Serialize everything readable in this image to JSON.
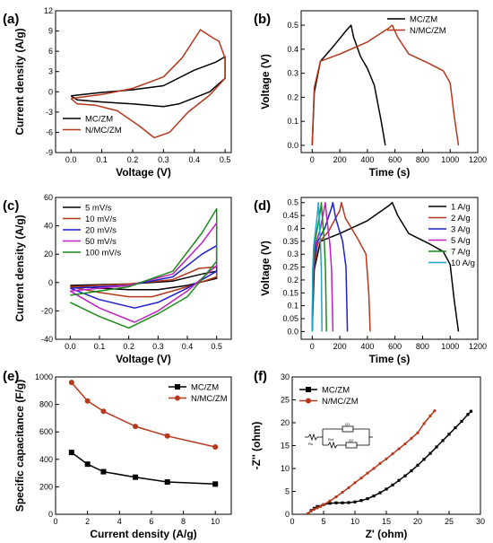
{
  "chart_data": [
    {
      "panel": "(a)",
      "type": "line",
      "xlabel": "Voltage (V)",
      "ylabel": "Current density (A/g)",
      "xlim": [
        -0.05,
        0.52
      ],
      "ylim": [
        -9,
        12
      ],
      "xticks": [
        0.0,
        0.1,
        0.2,
        0.3,
        0.4,
        0.5
      ],
      "xtick_labels": [
        "0.0",
        "0.1",
        "0.2",
        "0.3",
        "0.4",
        "0.5"
      ],
      "yticks": [
        -9,
        -6,
        -3,
        0,
        3,
        6,
        9,
        12
      ],
      "ytick_labels": [
        "-9",
        "-6",
        "-3",
        "0",
        "3",
        "6",
        "9",
        "12"
      ],
      "legend": "bottom-left",
      "series": [
        {
          "name": "MC/ZM",
          "color": "#000000",
          "x": [
            0.0,
            0.1,
            0.2,
            0.3,
            0.4,
            0.47,
            0.5,
            0.5,
            0.45,
            0.35,
            0.3,
            0.2,
            0.1,
            0.02,
            0.0
          ],
          "y": [
            -0.6,
            -0.1,
            0.3,
            0.9,
            3.2,
            4.4,
            5.2,
            2.0,
            0.0,
            -1.8,
            -2.2,
            -1.8,
            -1.5,
            -1.2,
            -0.6
          ]
        },
        {
          "name": "N/MC/ZM",
          "color": "#b5371c",
          "x": [
            0.0,
            0.1,
            0.2,
            0.3,
            0.36,
            0.42,
            0.46,
            0.48,
            0.5,
            0.5,
            0.45,
            0.38,
            0.32,
            0.27,
            0.22,
            0.15,
            0.08,
            0.02,
            0.0
          ],
          "y": [
            -1.0,
            -0.4,
            0.5,
            2.2,
            5.0,
            9.2,
            8.0,
            7.5,
            5.0,
            2.0,
            -0.5,
            -3.0,
            -6.0,
            -6.8,
            -5.0,
            -2.8,
            -2.0,
            -1.8,
            -1.0
          ]
        }
      ]
    },
    {
      "panel": "(b)",
      "type": "line",
      "xlabel": "Time (s)",
      "ylabel": "Voltage (V)",
      "xlim": [
        -80,
        1200
      ],
      "ylim": [
        -0.03,
        0.56
      ],
      "xticks": [
        0,
        200,
        400,
        600,
        800,
        1000,
        1200
      ],
      "xtick_labels": [
        "0",
        "200",
        "400",
        "600",
        "800",
        "1000",
        "1200"
      ],
      "yticks": [
        0.0,
        0.1,
        0.2,
        0.3,
        0.4,
        0.5
      ],
      "ytick_labels": [
        "0.0",
        "0.1",
        "0.2",
        "0.3",
        "0.4",
        "0.5"
      ],
      "legend": "top-right",
      "series": [
        {
          "name": "MC/ZM",
          "color": "#000000",
          "x": [
            0,
            15,
            60,
            150,
            250,
            282,
            300,
            350,
            400,
            450,
            500,
            530
          ],
          "y": [
            0.0,
            0.22,
            0.35,
            0.41,
            0.48,
            0.5,
            0.45,
            0.37,
            0.32,
            0.25,
            0.1,
            0.0
          ]
        },
        {
          "name": "N/MC/ZM",
          "color": "#b5371c",
          "x": [
            0,
            15,
            60,
            200,
            400,
            560,
            580,
            620,
            700,
            850,
            950,
            1000,
            1030,
            1060
          ],
          "y": [
            0.0,
            0.24,
            0.35,
            0.38,
            0.43,
            0.49,
            0.5,
            0.45,
            0.38,
            0.34,
            0.31,
            0.26,
            0.12,
            0.0
          ]
        }
      ]
    },
    {
      "panel": "(c)",
      "type": "line",
      "xlabel": "Voltage (V)",
      "ylabel": "Current density (A/g)",
      "xlim": [
        -0.05,
        0.55
      ],
      "ylim": [
        -40,
        60
      ],
      "xticks": [
        0.0,
        0.1,
        0.2,
        0.3,
        0.4,
        0.5
      ],
      "xtick_labels": [
        "0.0",
        "0.1",
        "0.2",
        "0.3",
        "0.4",
        "0.5"
      ],
      "yticks": [
        -40,
        -20,
        0,
        20,
        40,
        60
      ],
      "ytick_labels": [
        "-40",
        "-20",
        "0",
        "20",
        "40",
        "60"
      ],
      "legend": "top-left",
      "series": [
        {
          "name": "5 mV/s",
          "color": "#000000",
          "x": [
            0.0,
            0.2,
            0.35,
            0.45,
            0.5,
            0.5,
            0.4,
            0.3,
            0.2,
            0.1,
            0.0
          ],
          "y": [
            -2,
            -1,
            1,
            6,
            8,
            3,
            -2,
            -5,
            -5,
            -4,
            -2
          ]
        },
        {
          "name": "10 mV/s",
          "color": "#b5371c",
          "x": [
            0.0,
            0.2,
            0.35,
            0.44,
            0.5,
            0.5,
            0.4,
            0.28,
            0.2,
            0.1,
            0.0
          ],
          "y": [
            -3,
            -1,
            2,
            10,
            11,
            4,
            -3,
            -10,
            -10,
            -7,
            -3
          ]
        },
        {
          "name": "20 mV/s",
          "color": "#1f1fcc",
          "x": [
            0.0,
            0.2,
            0.35,
            0.45,
            0.5,
            0.5,
            0.4,
            0.3,
            0.22,
            0.1,
            0.0
          ],
          "y": [
            -4,
            -2,
            4,
            20,
            26,
            8,
            -4,
            -14,
            -18,
            -12,
            -4
          ]
        },
        {
          "name": "50 mV/s",
          "color": "#bf20bf",
          "x": [
            0.0,
            0.2,
            0.35,
            0.45,
            0.5,
            0.5,
            0.4,
            0.3,
            0.22,
            0.1,
            0.0
          ],
          "y": [
            -6,
            -2,
            6,
            28,
            42,
            12,
            -6,
            -20,
            -28,
            -18,
            -6
          ]
        },
        {
          "name": "100 mV/s",
          "color": "#1d8a1d",
          "x": [
            0.0,
            0.2,
            0.35,
            0.45,
            0.5,
            0.5,
            0.4,
            0.3,
            0.2,
            0.1,
            0.0
          ],
          "y": [
            -9,
            -3,
            8,
            35,
            52,
            15,
            -10,
            -22,
            -32,
            -24,
            -14
          ]
        }
      ]
    },
    {
      "panel": "(d)",
      "type": "line",
      "xlabel": "Time (s)",
      "ylabel": "Voltage (V)",
      "xlim": [
        -80,
        1200
      ],
      "ylim": [
        -0.03,
        0.52
      ],
      "xticks": [
        0,
        200,
        400,
        600,
        800,
        1000,
        1200
      ],
      "xtick_labels": [
        "0",
        "200",
        "400",
        "600",
        "800",
        "1000",
        "1200"
      ],
      "yticks": [
        0.0,
        0.05,
        0.1,
        0.15,
        0.2,
        0.25,
        0.3,
        0.35,
        0.4,
        0.45,
        0.5
      ],
      "ytick_labels": [
        "0.0",
        "0.05",
        "0.1",
        "0.15",
        "0.2",
        "0.25",
        "0.3",
        "0.35",
        "0.4",
        "0.45",
        "0.5"
      ],
      "legend": "top-right",
      "series": [
        {
          "name": "1 A/g",
          "color": "#000000",
          "x": [
            0,
            15,
            60,
            200,
            400,
            560,
            580,
            620,
            700,
            850,
            950,
            1000,
            1030,
            1060
          ],
          "y": [
            0.0,
            0.24,
            0.35,
            0.38,
            0.43,
            0.49,
            0.5,
            0.45,
            0.38,
            0.34,
            0.31,
            0.26,
            0.12,
            0.0
          ]
        },
        {
          "name": "2 A/g",
          "color": "#b5371c",
          "x": [
            0,
            10,
            40,
            120,
            200,
            212,
            240,
            330,
            390,
            410,
            420
          ],
          "y": [
            0.0,
            0.24,
            0.34,
            0.39,
            0.47,
            0.5,
            0.44,
            0.36,
            0.3,
            0.15,
            0.0
          ]
        },
        {
          "name": "3 A/g",
          "color": "#1f1fcc",
          "x": [
            0,
            8,
            30,
            90,
            140,
            150,
            170,
            220,
            245,
            255
          ],
          "y": [
            0.0,
            0.24,
            0.34,
            0.4,
            0.48,
            0.5,
            0.44,
            0.35,
            0.25,
            0.0
          ]
        },
        {
          "name": "5 A/g",
          "color": "#bf20bf",
          "x": [
            0,
            6,
            20,
            60,
            88,
            95,
            108,
            128,
            140,
            150
          ],
          "y": [
            0.0,
            0.24,
            0.33,
            0.4,
            0.48,
            0.5,
            0.43,
            0.34,
            0.24,
            0.0
          ]
        },
        {
          "name": "7 A/g",
          "color": "#1d8a1d",
          "x": [
            0,
            5,
            15,
            40,
            62,
            66,
            75,
            88,
            96,
            103
          ],
          "y": [
            0.0,
            0.24,
            0.33,
            0.41,
            0.48,
            0.5,
            0.43,
            0.34,
            0.24,
            0.0
          ]
        },
        {
          "name": "10 A/g",
          "color": "#1aa8c8",
          "x": [
            0,
            4,
            10,
            28,
            42,
            45,
            52,
            60,
            66,
            71
          ],
          "y": [
            0.0,
            0.24,
            0.33,
            0.41,
            0.48,
            0.5,
            0.43,
            0.34,
            0.24,
            0.0
          ]
        }
      ]
    },
    {
      "panel": "(e)",
      "type": "line",
      "xlabel": "Current density (A/g)",
      "ylabel": "Specific capacitance (F/g)",
      "xlim": [
        0,
        11
      ],
      "ylim": [
        0,
        1000
      ],
      "xticks": [
        0,
        2,
        4,
        6,
        8,
        10
      ],
      "xtick_labels": [
        "0",
        "2",
        "4",
        "6",
        "8",
        "10"
      ],
      "yticks": [
        0,
        200,
        400,
        600,
        800,
        1000
      ],
      "ytick_labels": [
        "0",
        "200",
        "400",
        "600",
        "800",
        "1000"
      ],
      "legend": "top-right",
      "series": [
        {
          "name": "MC/ZM",
          "color": "#000000",
          "marker": "square",
          "x": [
            1,
            2,
            3,
            5,
            7,
            10
          ],
          "y": [
            450,
            365,
            310,
            270,
            235,
            220
          ]
        },
        {
          "name": "N/MC/ZM",
          "color": "#b5371c",
          "marker": "circle",
          "x": [
            1,
            2,
            3,
            5,
            7,
            10
          ],
          "y": [
            960,
            825,
            750,
            640,
            570,
            490
          ]
        }
      ]
    },
    {
      "panel": "(f)",
      "type": "scatter",
      "xlabel": "Z' (ohm)",
      "ylabel": "-Z'' (ohm)",
      "xlim": [
        0,
        30
      ],
      "ylim": [
        0,
        30
      ],
      "xticks": [
        0,
        5,
        10,
        15,
        20,
        25,
        30
      ],
      "xtick_labels": [
        "0",
        "5",
        "10",
        "15",
        "20",
        "25",
        "30"
      ],
      "yticks": [
        0,
        5,
        10,
        15,
        20,
        25,
        30
      ],
      "ytick_labels": [
        "0",
        "5",
        "10",
        "15",
        "20",
        "25",
        "30"
      ],
      "legend": "top-left",
      "inset": "equivalent circuit",
      "inset_labels": [
        "Rs",
        "Rct",
        "Q1",
        "Q2"
      ],
      "series": [
        {
          "name": "MC/ZM",
          "color": "#000000",
          "marker": "square",
          "x": [
            2.5,
            3.0,
            3.5,
            4.0,
            5.0,
            6.0,
            7.0,
            8.0,
            9.0,
            10.0,
            11.0,
            12.0,
            13.0,
            14.0,
            15.0,
            16.0,
            17.0,
            18.0,
            19.0,
            20.0,
            21.0,
            22.0,
            23.0,
            24.0,
            25.0,
            26.0,
            27.0,
            28.0,
            28.5
          ],
          "y": [
            0.1,
            0.8,
            1.3,
            1.7,
            2.1,
            2.4,
            2.5,
            2.5,
            2.55,
            2.7,
            3.0,
            3.4,
            4.0,
            4.7,
            5.5,
            6.4,
            7.4,
            8.4,
            9.5,
            10.7,
            12.0,
            13.3,
            14.7,
            16.1,
            17.5,
            18.9,
            20.3,
            21.8,
            22.5
          ]
        },
        {
          "name": "N/MC/ZM",
          "color": "#b5371c",
          "marker": "circle",
          "x": [
            2.5,
            3.0,
            3.5,
            4.0,
            4.5,
            5.0,
            6.0,
            7.0,
            8.0,
            9.0,
            10.0,
            11.0,
            12.0,
            13.0,
            14.0,
            15.0,
            16.0,
            17.0,
            18.0,
            19.0,
            20.0,
            21.0,
            22.0,
            22.7
          ],
          "y": [
            0.1,
            0.7,
            1.1,
            1.4,
            1.7,
            2.1,
            2.9,
            3.8,
            4.8,
            5.8,
            6.9,
            7.9,
            9.0,
            10.0,
            11.1,
            12.1,
            13.2,
            14.3,
            15.4,
            16.6,
            17.8,
            19.8,
            21.5,
            22.6
          ]
        }
      ]
    }
  ]
}
